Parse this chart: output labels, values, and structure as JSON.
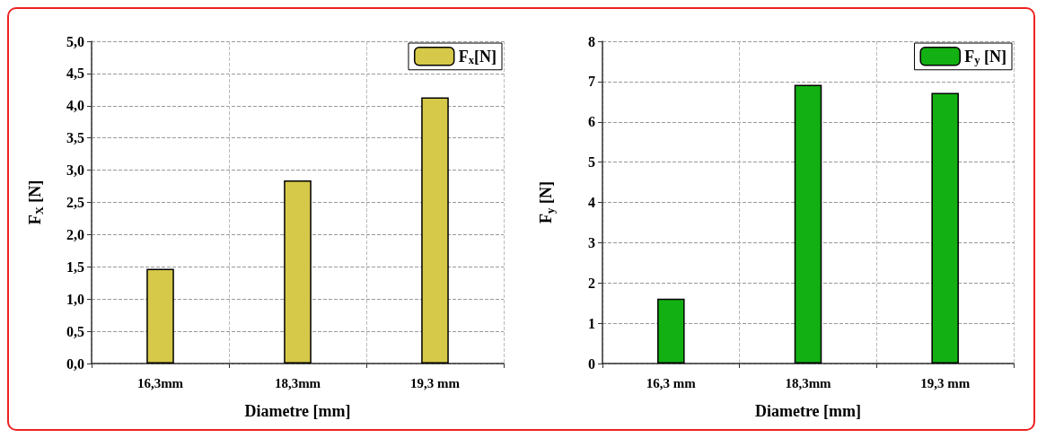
{
  "chart_data": [
    {
      "type": "bar",
      "xlabel": "Diametre [mm]",
      "ylabel": "F$_{X}$ [N]",
      "categories": [
        "16,3mm",
        "18,3mm",
        "19,3 mm"
      ],
      "series": [
        {
          "name": "F$_{x}$[N]",
          "color": "#d6c94a",
          "values": [
            1.47,
            2.84,
            4.13
          ]
        }
      ],
      "ylim": [
        0,
        5
      ],
      "yticks": [
        {
          "value": 0,
          "label": "0,0"
        },
        {
          "value": 0.5,
          "label": "0,5"
        },
        {
          "value": 1,
          "label": "1,0"
        },
        {
          "value": 1.5,
          "label": "1,5"
        },
        {
          "value": 2,
          "label": "2,0"
        },
        {
          "value": 2.5,
          "label": "2,5"
        },
        {
          "value": 3,
          "label": "3,0"
        },
        {
          "value": 3.5,
          "label": "3,5"
        },
        {
          "value": 4,
          "label": "4,0"
        },
        {
          "value": 4.5,
          "label": "4,5"
        },
        {
          "value": 5,
          "label": "5,0"
        }
      ],
      "grid": true,
      "legend": "top right"
    },
    {
      "type": "bar",
      "xlabel": "Diametre [mm]",
      "ylabel": "F$_{y}$ [N]",
      "categories": [
        "16,3 mm",
        "18,3mm",
        "19,3 mm"
      ],
      "series": [
        {
          "name": "F$_{y}$ [N]",
          "color": "#12b012",
          "values": [
            1.61,
            6.92,
            6.72
          ]
        }
      ],
      "ylim": [
        0,
        8
      ],
      "yticks": [
        0,
        1,
        2,
        3,
        4,
        5,
        6,
        7,
        8
      ],
      "grid": true,
      "legend": "top right"
    }
  ]
}
